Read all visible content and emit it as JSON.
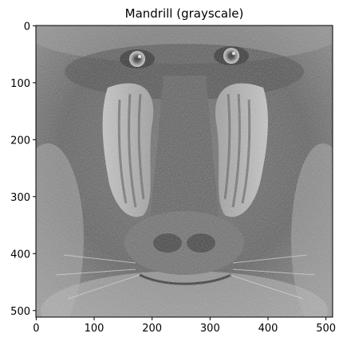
{
  "title": "Mandrill (grayscale)",
  "image": {
    "subject": "mandrill face",
    "colormap": "gray",
    "width": 512,
    "height": 512
  },
  "axes": {
    "x_ticks": [
      "0",
      "100",
      "200",
      "300",
      "400",
      "500"
    ],
    "y_ticks": [
      "0",
      "100",
      "200",
      "300",
      "400",
      "500"
    ]
  }
}
